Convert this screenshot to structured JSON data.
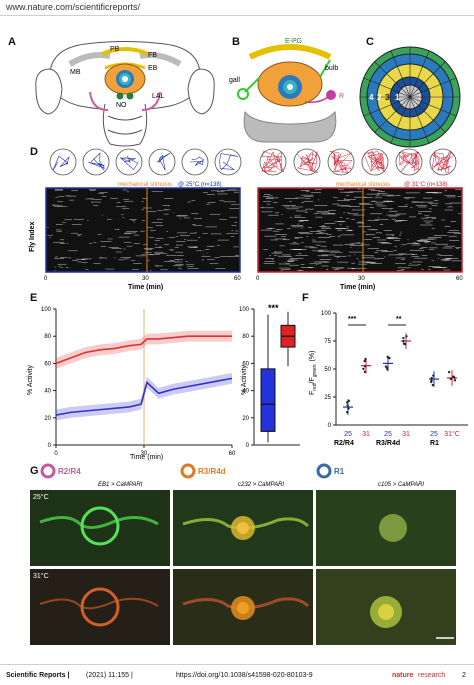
{
  "header": {
    "url": "www.nature.com/scientificreports/"
  },
  "panel_labels": [
    "A",
    "B",
    "C",
    "D",
    "E",
    "F",
    "G"
  ],
  "panelA": {
    "labels": {
      "pb": "PB",
      "fb": "FB",
      "eb": "EB",
      "mb": "MB",
      "no": "NO",
      "lal": "LAL"
    }
  },
  "panelB": {
    "labels": {
      "epg": "E-PG",
      "bulb": "bulb",
      "gall": "gall",
      "r": "R"
    }
  },
  "panelC": {
    "labels": [
      "4",
      "2",
      "3",
      "1"
    ]
  },
  "panelD": {
    "left": {
      "condition": "@ 25°C (n=138)",
      "stimulus": "mechanical stimulus",
      "x_label": "Time (min)",
      "ticks": [
        "0",
        "30",
        "60"
      ],
      "border_color": "#2233aa"
    },
    "right": {
      "condition": "@ 31°C (n=138)",
      "stimulus": "mechanical stimulus",
      "x_label": "Time (min)",
      "ticks": [
        "0",
        "30",
        "60"
      ],
      "border_color": "#cc2233"
    },
    "y_label": "Fly Index"
  },
  "panelE": {
    "y_label": "% Activity",
    "x_label": "Time (min)",
    "box_y_label": "% Activity",
    "significance": "***"
  },
  "panelF": {
    "y_label_main": "F",
    "y_label_sub_red": "red",
    "y_label_sep": "/F",
    "y_label_sub_green": "green",
    "y_label_pct": "(%)",
    "sig1": "***",
    "sig2": "**",
    "temp_labels": [
      "25",
      "31",
      "25",
      "31",
      "25",
      "31°C"
    ],
    "group_labels": [
      "R2/R4",
      "R3/R4d",
      "R1"
    ]
  },
  "panelG": {
    "legend": [
      "R2/R4",
      "R3/R4d",
      "R1"
    ],
    "genotypes": [
      "EB1 > CaMPARI",
      "c232 > CaMPARI",
      "c105 > CaMPARI"
    ],
    "temps": [
      "25°C",
      "31°C"
    ]
  },
  "footer": {
    "journal": "Scientific Reports |",
    "year": "(2021) 11:155 |",
    "doi": "https://doi.org/10.1038/s41598-020-80103-9",
    "brand_bold": "nature",
    "brand_light": "research",
    "page": "2"
  },
  "chart_data": [
    {
      "type": "line",
      "title": "",
      "xlabel": "Time (min)",
      "ylabel": "% Activity",
      "xlim": [
        0,
        60
      ],
      "ylim": [
        0,
        100
      ],
      "x": [
        0,
        5,
        10,
        15,
        20,
        25,
        29,
        31,
        35,
        40,
        45,
        50,
        55,
        60
      ],
      "series": [
        {
          "color": "#d33",
          "values": [
            60,
            64,
            68,
            70,
            71,
            73,
            74,
            78,
            78,
            79,
            80,
            80,
            80,
            80
          ]
        },
        {
          "color": "#33c",
          "values": [
            22,
            24,
            25,
            26,
            27,
            28,
            30,
            46,
            38,
            41,
            43,
            45,
            47,
            49
          ]
        }
      ]
    },
    {
      "type": "bar",
      "title": "",
      "xlabel": "",
      "ylabel": "F red/F green (%)",
      "ylim": [
        0,
        100
      ],
      "categories": [
        "R2/R4 25",
        "R2/R4 31",
        "R3/R4d 25",
        "R3/R4d 31",
        "R1 25",
        "R1 31"
      ],
      "values": [
        16,
        53,
        55,
        75,
        41,
        42
      ]
    }
  ]
}
